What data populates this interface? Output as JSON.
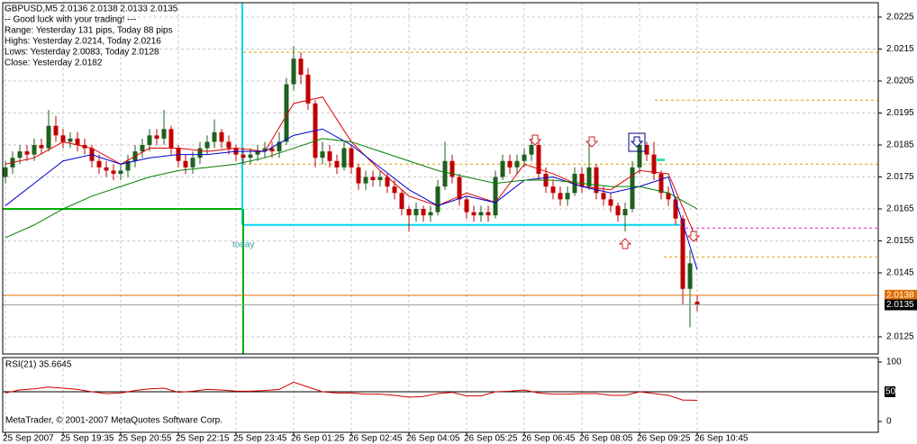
{
  "chart_data": {
    "type": "candlestick",
    "title": "GBPUSD,M5  2.0136 2.0138 2.0133 2.0135",
    "info_lines": [
      "-- Good luck with your trading! ---",
      "Range: Yesterday 131 pips, Today 88 pips",
      "Highs: Yesterday 2.0214, Today 2.0216",
      "Lows: Yesterday 2.0083, Today 2.0128",
      "Close: Yesterday 2.0182"
    ],
    "today_label": "today",
    "footer": "MetaTrader, © 2001-2007 MetaQuotes Software Corp.",
    "categories": [
      "25 Sep 2007",
      null,
      null,
      null,
      null,
      null,
      null,
      null,
      "25 Sep 19:35",
      null,
      null,
      null,
      null,
      null,
      null,
      null,
      "25 Sep 20:55",
      null,
      null,
      null,
      null,
      null,
      null,
      null,
      "25 Sep 22:15",
      null,
      null,
      null,
      null,
      null,
      null,
      null,
      "25 Sep 23:45",
      null,
      null,
      null,
      null,
      null,
      null,
      null,
      "26 Sep 01:25",
      null,
      null,
      null,
      null,
      null,
      null,
      null,
      "26 Sep 02:45",
      null,
      null,
      null,
      null,
      null,
      null,
      null,
      "26 Sep 04:05",
      null,
      null,
      null,
      null,
      null,
      null,
      null,
      "26 Sep 05:25",
      null,
      null,
      null,
      null,
      null,
      null,
      null,
      "26 Sep 06:45",
      null,
      null,
      null,
      null,
      null,
      null,
      null,
      "26 Sep 08:05",
      null,
      null,
      null,
      null,
      null,
      null,
      null,
      "26 Sep 09:25",
      null,
      null,
      null,
      null,
      null,
      null,
      null,
      "26 Sep 10:45"
    ],
    "open": [
      2.0175,
      2.0178,
      2.0181,
      2.0183,
      2.0182,
      2.0185,
      2.0184,
      2.0191,
      2.0188,
      2.0186,
      2.0187,
      2.0185,
      2.0184,
      2.018,
      2.0178,
      2.0177,
      2.0176,
      2.0177,
      2.018,
      2.0183,
      2.0185,
      2.0188,
      2.0187,
      2.019,
      2.0184,
      2.018,
      2.0178,
      2.0181,
      2.0184,
      2.0186,
      2.0189,
      2.0186,
      2.0184,
      2.0182,
      2.0181,
      2.0182,
      2.0183,
      2.0184,
      2.0183,
      2.0186,
      2.0204,
      2.0212,
      2.0207,
      2.0198,
      2.0181,
      2.0183,
      2.018,
      2.0178,
      2.0184,
      2.0178,
      2.0173,
      2.0175,
      2.0174,
      2.0175,
      2.0172,
      2.017,
      2.0165,
      2.0163,
      2.0165,
      2.0163,
      2.0164,
      2.0172,
      2.018,
      2.0175,
      2.0168,
      2.0164,
      2.0163,
      2.0164,
      2.0163,
      2.0175,
      2.018,
      2.0178,
      2.018,
      2.0182,
      2.0185,
      2.0176,
      2.0172,
      2.017,
      2.0168,
      2.017,
      2.0176,
      2.0172,
      2.0178,
      2.017,
      2.0168,
      2.0166,
      2.0163,
      2.0165,
      2.0178,
      2.0185,
      2.0182,
      2.0176,
      2.017,
      2.0168,
      2.0162,
      2.014,
      2.0136
    ],
    "high": [
      2.018,
      2.0183,
      2.0185,
      2.0185,
      2.0187,
      2.0187,
      2.0196,
      2.0194,
      2.019,
      2.0189,
      2.0189,
      2.0187,
      2.0185,
      2.0182,
      2.018,
      2.0179,
      2.0179,
      2.0182,
      2.0185,
      2.0187,
      2.019,
      2.019,
      2.0196,
      2.0191,
      2.0185,
      2.0182,
      2.0183,
      2.0186,
      2.0188,
      2.0193,
      2.019,
      2.0188,
      2.0185,
      2.0184,
      2.0184,
      2.0185,
      2.0186,
      2.0186,
      2.0189,
      2.0206,
      2.0216,
      2.0214,
      2.0209,
      2.0199,
      2.0186,
      2.0185,
      2.0182,
      2.0186,
      2.0185,
      2.0179,
      2.0177,
      2.0177,
      2.0177,
      2.0176,
      2.0174,
      2.0171,
      2.0166,
      2.0167,
      2.0166,
      2.0166,
      2.0174,
      2.0186,
      2.0182,
      2.0176,
      2.0169,
      2.0166,
      2.0166,
      2.0166,
      2.0177,
      2.0182,
      2.0182,
      2.0182,
      2.0184,
      2.0187,
      2.0186,
      2.0178,
      2.0174,
      2.0172,
      2.0172,
      2.0178,
      2.0178,
      2.0185,
      2.0179,
      2.0172,
      2.017,
      2.0167,
      2.0167,
      2.018,
      2.0187,
      2.0186,
      2.0186,
      2.0177,
      2.0172,
      2.0169,
      2.0163,
      2.0152,
      2.0138
    ],
    "low": [
      2.0173,
      2.0176,
      2.0179,
      2.018,
      2.018,
      2.0182,
      2.0183,
      2.0186,
      2.0184,
      2.0184,
      2.0183,
      2.0182,
      2.0178,
      2.0176,
      2.0175,
      2.0174,
      2.0174,
      2.0175,
      2.0178,
      2.0181,
      2.0183,
      2.0185,
      2.0185,
      2.0182,
      2.0178,
      2.0176,
      2.0176,
      2.0179,
      2.0182,
      2.0184,
      2.0184,
      2.0182,
      2.018,
      2.0179,
      2.0179,
      2.018,
      2.0181,
      2.0181,
      2.0181,
      2.0185,
      2.0202,
      2.0204,
      2.0196,
      2.0178,
      2.0179,
      2.0178,
      2.0176,
      2.0177,
      2.0176,
      2.0171,
      2.0171,
      2.0172,
      2.0172,
      2.017,
      2.0168,
      2.0163,
      2.0158,
      2.0161,
      2.0161,
      2.0161,
      2.0163,
      2.0171,
      2.0173,
      2.0166,
      2.0162,
      2.0161,
      2.0161,
      2.0161,
      2.0162,
      2.0174,
      2.0176,
      2.0176,
      2.0178,
      2.018,
      2.0174,
      2.017,
      2.0168,
      2.0166,
      2.0166,
      2.0169,
      2.017,
      2.0171,
      2.0168,
      2.0166,
      2.0164,
      2.0161,
      2.0158,
      2.0164,
      2.0176,
      2.018,
      2.0174,
      2.0168,
      2.0166,
      2.016,
      2.0135,
      2.0128,
      2.0133
    ],
    "close": [
      2.0178,
      2.0181,
      2.0183,
      2.0182,
      2.0185,
      2.0184,
      2.0191,
      2.0188,
      2.0186,
      2.0187,
      2.0185,
      2.0184,
      2.018,
      2.0178,
      2.0177,
      2.0176,
      2.0177,
      2.018,
      2.0183,
      2.0185,
      2.0188,
      2.0187,
      2.019,
      2.0184,
      2.018,
      2.0178,
      2.0181,
      2.0184,
      2.0186,
      2.0189,
      2.0186,
      2.0184,
      2.0182,
      2.0181,
      2.0182,
      2.0183,
      2.0184,
      2.0183,
      2.0186,
      2.0204,
      2.0212,
      2.0207,
      2.0198,
      2.0181,
      2.0183,
      2.018,
      2.0178,
      2.0184,
      2.0178,
      2.0173,
      2.0175,
      2.0174,
      2.0175,
      2.0172,
      2.017,
      2.0165,
      2.0163,
      2.0165,
      2.0163,
      2.0164,
      2.0172,
      2.018,
      2.0175,
      2.0168,
      2.0164,
      2.0163,
      2.0164,
      2.0163,
      2.0175,
      2.018,
      2.0178,
      2.018,
      2.0182,
      2.0185,
      2.0176,
      2.0172,
      2.017,
      2.0168,
      2.017,
      2.0176,
      2.0172,
      2.0178,
      2.017,
      2.0168,
      2.0166,
      2.0163,
      2.0165,
      2.0178,
      2.0185,
      2.0182,
      2.0176,
      2.017,
      2.0168,
      2.0162,
      2.014,
      2.0148,
      2.0135
    ],
    "up_color": "#1f5f1f",
    "down_color": "#c00000",
    "ylim": [
      2.0125,
      2.0225
    ],
    "yticks": [
      2.0125,
      2.0145,
      2.0155,
      2.0165,
      2.0175,
      2.0185,
      2.0195,
      2.0205,
      2.0215,
      2.0225
    ],
    "grid": true,
    "indicators": [
      {
        "color": "#e00000",
        "x": [
          0,
          4,
          8,
          12,
          16,
          20,
          24,
          28,
          32,
          36,
          40,
          44,
          48,
          52,
          56,
          60,
          64,
          68,
          72,
          76,
          80,
          84,
          88,
          92,
          96
        ],
        "values": [
          2.0179,
          2.0181,
          2.0186,
          2.0184,
          2.0179,
          2.0184,
          2.0184,
          2.0183,
          2.0184,
          2.0183,
          2.0198,
          2.02,
          2.0186,
          2.0177,
          2.0169,
          2.0166,
          2.017,
          2.0167,
          2.0179,
          2.0176,
          2.0172,
          2.0171,
          2.0177,
          2.0176,
          2.0155
        ]
      },
      {
        "color": "#0000d0",
        "x": [
          0,
          4,
          8,
          12,
          16,
          20,
          24,
          28,
          32,
          36,
          40,
          44,
          48,
          52,
          56,
          60,
          64,
          68,
          72,
          76,
          80,
          84,
          88,
          92,
          96
        ],
        "values": [
          2.0166,
          2.0173,
          2.018,
          2.0182,
          2.0179,
          2.0181,
          2.0182,
          2.0182,
          2.0183,
          2.0183,
          2.0188,
          2.019,
          2.0185,
          2.0178,
          2.0171,
          2.0166,
          2.0169,
          2.0167,
          2.0174,
          2.0175,
          2.0172,
          2.017,
          2.0172,
          2.0175,
          2.0146
        ]
      },
      {
        "color": "#008000",
        "x": [
          0,
          4,
          8,
          12,
          16,
          20,
          24,
          28,
          32,
          36,
          40,
          44,
          48,
          52,
          56,
          60,
          64,
          68,
          72,
          76,
          80,
          84,
          88,
          92,
          96
        ],
        "values": [
          2.0156,
          2.016,
          2.0165,
          2.0169,
          2.0172,
          2.0175,
          2.0177,
          2.0178,
          2.0179,
          2.0181,
          2.0184,
          2.0187,
          2.0186,
          2.0183,
          2.018,
          2.0177,
          2.0175,
          2.0173,
          2.0174,
          2.0174,
          2.0173,
          2.0172,
          2.0172,
          2.017,
          2.0165
        ]
      }
    ],
    "levels": [
      {
        "value": 2.0214,
        "color": "#e0a000",
        "style": "dashed"
      },
      {
        "value": 2.0179,
        "color": "#e0a000",
        "style": "dashed"
      },
      {
        "value": 2.0199,
        "color": "#e0a000",
        "style": "dashed"
      },
      {
        "value": 2.015,
        "color": "#e0a000",
        "style": "dashed"
      },
      {
        "value": 2.0159,
        "color": "#d020d0",
        "style": "dashed"
      },
      {
        "value": 2.016,
        "color": "#00d8f0",
        "style": "solid"
      },
      {
        "value": 2.0165,
        "color": "#00b000",
        "style": "solid"
      }
    ],
    "price_lines": [
      {
        "value": 2.0138,
        "color": "#e07000",
        "text_color": "#ffffff"
      },
      {
        "value": 2.0135,
        "color": "#000000",
        "text_color": "#ffffff"
      }
    ],
    "rsi": {
      "title": "RSI(21) 35.6645",
      "color": "#d00000",
      "ylim": [
        0,
        100
      ],
      "yticks": [
        0,
        100
      ],
      "level": 50,
      "x": [
        0,
        2,
        4,
        6,
        8,
        10,
        12,
        14,
        16,
        18,
        20,
        22,
        24,
        26,
        28,
        30,
        32,
        34,
        36,
        38,
        40,
        42,
        44,
        46,
        48,
        50,
        52,
        54,
        56,
        58,
        60,
        62,
        64,
        66,
        68,
        70,
        72,
        74,
        76,
        78,
        80,
        82,
        84,
        86,
        88,
        90,
        92,
        94,
        96
      ],
      "values": [
        48,
        53,
        55,
        58,
        56,
        54,
        50,
        47,
        48,
        52,
        55,
        56,
        49,
        51,
        54,
        53,
        51,
        51,
        52,
        54,
        66,
        58,
        50,
        48,
        48,
        46,
        46,
        44,
        41,
        42,
        47,
        49,
        43,
        43,
        50,
        51,
        53,
        48,
        46,
        46,
        47,
        47,
        44,
        44,
        50,
        47,
        44,
        36,
        35.6645
      ]
    }
  }
}
